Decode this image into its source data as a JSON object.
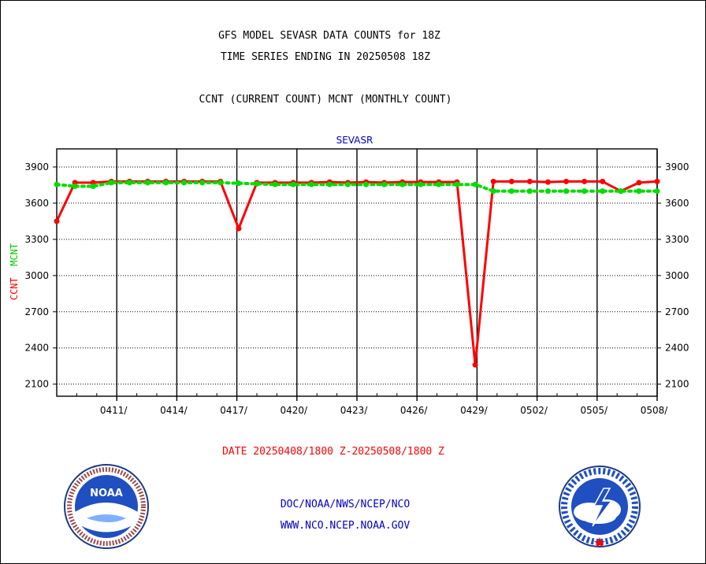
{
  "header": {
    "title_line1": "GFS MODEL SEVASR DATA COUNTS for 18Z",
    "title_line2": "TIME SERIES ENDING IN 20250508 18Z",
    "subtitle": "CCNT (CURRENT COUNT) MCNT (MONTHLY COUNT)"
  },
  "footer": {
    "date_range": "DATE 20250408/1800 Z-20250508/1800 Z",
    "org": "DOC/NOAA/NWS/NCEP/NCO",
    "website": "WWW.NCO.NCEP.NOAA.GOV"
  },
  "logos": {
    "left": "noaa-logo",
    "left_text": "NOAA",
    "right": "nws-logo"
  },
  "colors": {
    "ccnt": "#ff0000",
    "mcnt": "#00dd00",
    "text_blue": "#0000cc",
    "grid": "#000000"
  },
  "chart_data": {
    "type": "line",
    "title": "SEVASR",
    "ylabel_parts": [
      "CCNT",
      "MCNT"
    ],
    "ylim": [
      2000,
      4050
    ],
    "yticks": [
      2100,
      2400,
      2700,
      3000,
      3300,
      3600,
      3900
    ],
    "x_start": "20250408/1800",
    "x_end": "20250508/1800",
    "xticks": [
      "0411/",
      "0414/",
      "0417/",
      "0420/",
      "0423/",
      "0426/",
      "0429/",
      "0502/",
      "0505/",
      "0508/"
    ],
    "grid": true,
    "legend": "none",
    "series": [
      {
        "name": "CCNT",
        "color": "#ff0000",
        "style": "solid",
        "values": [
          3450,
          3770,
          3770,
          3780,
          3780,
          3780,
          3780,
          3780,
          3780,
          3780,
          3390,
          3770,
          3770,
          3770,
          3770,
          3775,
          3770,
          3775,
          3770,
          3775,
          3775,
          3775,
          3775,
          2260,
          3780,
          3780,
          3780,
          3775,
          3780,
          3780,
          3780,
          3700,
          3770,
          3780
        ]
      },
      {
        "name": "MCNT",
        "color": "#00dd00",
        "style": "dotted",
        "values": [
          3755,
          3740,
          3740,
          3770,
          3770,
          3770,
          3770,
          3770,
          3770,
          3770,
          3765,
          3760,
          3755,
          3755,
          3755,
          3755,
          3755,
          3755,
          3755,
          3755,
          3755,
          3755,
          3755,
          3755,
          3700,
          3700,
          3700,
          3700,
          3700,
          3700,
          3700,
          3700,
          3700,
          3700
        ]
      }
    ]
  }
}
